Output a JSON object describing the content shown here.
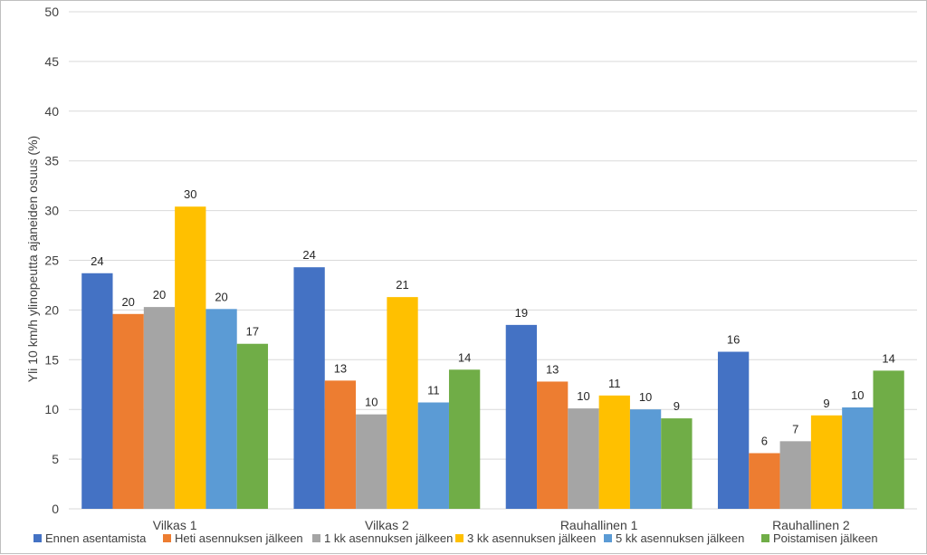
{
  "chart_data": {
    "type": "bar",
    "ylabel": "Yli 10 km/h ylinopeutta ajaneiden osuus (%)",
    "xlabel": "",
    "ylim": [
      0,
      50
    ],
    "yticks": [
      0,
      5,
      10,
      15,
      20,
      25,
      30,
      35,
      40,
      45,
      50
    ],
    "grid": true,
    "legend_position": "bottom",
    "categories": [
      "Vilkas 1",
      "Vilkas 2",
      "Rauhallinen 1",
      "Rauhallinen 2"
    ],
    "series": [
      {
        "name": "Ennen asentamista",
        "color": "#4472C4",
        "values": [
          23.7,
          24.3,
          18.5,
          15.8
        ],
        "labels": [
          "24",
          "24",
          "19",
          "16"
        ]
      },
      {
        "name": "Heti asennuksen jälkeen",
        "color": "#ED7D31",
        "values": [
          19.6,
          12.9,
          12.8,
          5.6
        ],
        "labels": [
          "20",
          "13",
          "13",
          "6"
        ]
      },
      {
        "name": "1 kk asennuksen jälkeen",
        "color": "#A5A5A5",
        "values": [
          20.3,
          9.5,
          10.1,
          6.8
        ],
        "labels": [
          "20",
          "10",
          "10",
          "7"
        ]
      },
      {
        "name": "3 kk asennuksen jälkeen",
        "color": "#FFC000",
        "values": [
          30.4,
          21.3,
          11.4,
          9.4
        ],
        "labels": [
          "30",
          "21",
          "11",
          "9"
        ]
      },
      {
        "name": "5 kk asennuksen jälkeen",
        "color": "#5B9BD5",
        "values": [
          20.1,
          10.7,
          10.0,
          10.2
        ],
        "labels": [
          "20",
          "11",
          "10",
          "10"
        ]
      },
      {
        "name": "Poistamisen jälkeen",
        "color": "#70AD47",
        "values": [
          16.6,
          14.0,
          9.1,
          13.9
        ],
        "labels": [
          "17",
          "14",
          "9",
          "14"
        ]
      }
    ]
  }
}
